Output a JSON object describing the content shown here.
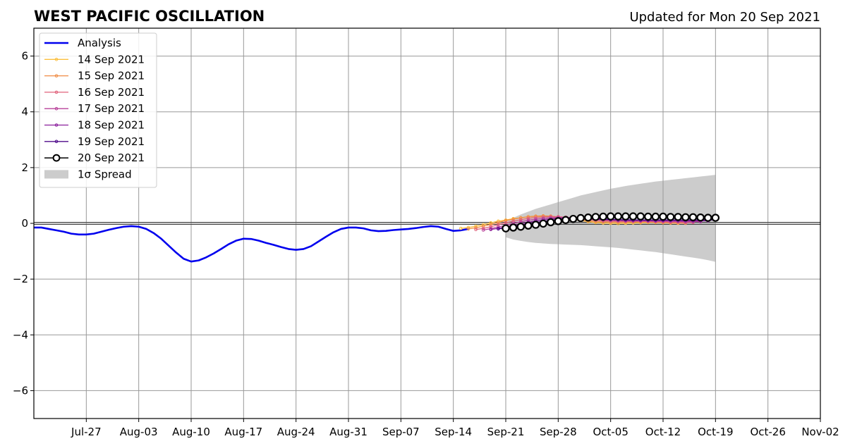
{
  "chart_data": {
    "type": "line",
    "title": "WEST PACIFIC OSCILLATION",
    "subtitle": "Updated for Mon 20 Sep 2021",
    "xlabel": "",
    "ylabel": "",
    "x_range": [
      "2021-07-20",
      "2021-11-02"
    ],
    "ylim": [
      -7,
      7
    ],
    "x_ticks": [
      "Jul-27",
      "Aug-03",
      "Aug-10",
      "Aug-17",
      "Aug-24",
      "Aug-31",
      "Sep-07",
      "Sep-14",
      "Sep-21",
      "Sep-28",
      "Oct-05",
      "Oct-12",
      "Oct-19",
      "Oct-26",
      "Nov-02"
    ],
    "y_ticks": [
      "6",
      "4",
      "2",
      "0",
      "−2",
      "−4",
      "−6"
    ],
    "y_tick_values": [
      6,
      4,
      2,
      0,
      -2,
      -4,
      -6
    ],
    "grid": true,
    "zero_line": true,
    "legend_position": "upper left",
    "legend": [
      {
        "label": "Analysis",
        "color": "#0000ee",
        "style": "thick-line"
      },
      {
        "label": "14 Sep 2021",
        "color": "#fbbf3e",
        "style": "line-dot"
      },
      {
        "label": "15 Sep 2021",
        "color": "#f08c45",
        "style": "line-dot"
      },
      {
        "label": "16 Sep 2021",
        "color": "#e0607a",
        "style": "line-dot"
      },
      {
        "label": "17 Sep 2021",
        "color": "#b8409a",
        "style": "line-dot"
      },
      {
        "label": "18 Sep 2021",
        "color": "#8a1e9c",
        "style": "line-dot"
      },
      {
        "label": "19 Sep 2021",
        "color": "#4e0a8a",
        "style": "line-dot"
      },
      {
        "label": "20 Sep 2021",
        "color": "#000000",
        "style": "line-circle"
      },
      {
        "label": "1σ Spread",
        "color": "#cccccc",
        "style": "patch"
      }
    ],
    "analysis": {
      "x": [
        "2021-07-20",
        "2021-07-21",
        "2021-07-22",
        "2021-07-23",
        "2021-07-24",
        "2021-07-25",
        "2021-07-26",
        "2021-07-27",
        "2021-07-28",
        "2021-07-29",
        "2021-07-30",
        "2021-07-31",
        "2021-08-01",
        "2021-08-02",
        "2021-08-03",
        "2021-08-04",
        "2021-08-05",
        "2021-08-06",
        "2021-08-07",
        "2021-08-08",
        "2021-08-09",
        "2021-08-10",
        "2021-08-11",
        "2021-08-12",
        "2021-08-13",
        "2021-08-14",
        "2021-08-15",
        "2021-08-16",
        "2021-08-17",
        "2021-08-18",
        "2021-08-19",
        "2021-08-20",
        "2021-08-21",
        "2021-08-22",
        "2021-08-23",
        "2021-08-24",
        "2021-08-25",
        "2021-08-26",
        "2021-08-27",
        "2021-08-28",
        "2021-08-29",
        "2021-08-30",
        "2021-08-31",
        "2021-09-01",
        "2021-09-02",
        "2021-09-03",
        "2021-09-04",
        "2021-09-05",
        "2021-09-06",
        "2021-09-07",
        "2021-09-08",
        "2021-09-09",
        "2021-09-10",
        "2021-09-11",
        "2021-09-12",
        "2021-09-13",
        "2021-09-14",
        "2021-09-15",
        "2021-09-16"
      ],
      "y": [
        -0.15,
        -0.15,
        -0.2,
        -0.25,
        -0.3,
        -0.37,
        -0.4,
        -0.4,
        -0.37,
        -0.3,
        -0.23,
        -0.17,
        -0.12,
        -0.1,
        -0.12,
        -0.2,
        -0.35,
        -0.55,
        -0.8,
        -1.05,
        -1.27,
        -1.37,
        -1.33,
        -1.22,
        -1.08,
        -0.92,
        -0.75,
        -0.62,
        -0.55,
        -0.56,
        -0.62,
        -0.7,
        -0.77,
        -0.85,
        -0.92,
        -0.95,
        -0.92,
        -0.82,
        -0.65,
        -0.48,
        -0.32,
        -0.2,
        -0.15,
        -0.15,
        -0.18,
        -0.25,
        -0.28,
        -0.27,
        -0.24,
        -0.22,
        -0.2,
        -0.17,
        -0.13,
        -0.1,
        -0.12,
        -0.2,
        -0.27,
        -0.25,
        -0.2
      ]
    },
    "forecasts": [
      {
        "name": "14 Sep 2021",
        "start": "2021-09-15",
        "y": [
          -0.18,
          -0.15,
          -0.1,
          -0.05,
          0.02,
          0.08,
          0.12,
          0.17,
          0.2,
          0.23,
          0.25,
          0.26,
          0.25,
          0.22,
          0.18,
          0.14,
          0.1,
          0.06,
          0.03,
          0.01,
          0.0,
          -0.01,
          0.0,
          0.01,
          0.02,
          0.03,
          0.03,
          0.02,
          0.01,
          0.0
        ]
      },
      {
        "name": "15 Sep 2021",
        "start": "2021-09-16",
        "y": [
          -0.2,
          -0.16,
          -0.1,
          -0.04,
          0.03,
          0.1,
          0.15,
          0.2,
          0.24,
          0.26,
          0.27,
          0.26,
          0.23,
          0.2,
          0.16,
          0.12,
          0.09,
          0.06,
          0.05,
          0.04,
          0.04,
          0.04,
          0.05,
          0.05,
          0.05,
          0.04,
          0.03,
          0.02,
          0.01,
          0.0
        ]
      },
      {
        "name": "16 Sep 2021",
        "start": "2021-09-17",
        "y": [
          -0.22,
          -0.18,
          -0.12,
          -0.05,
          0.02,
          0.08,
          0.13,
          0.18,
          0.21,
          0.23,
          0.24,
          0.24,
          0.22,
          0.19,
          0.16,
          0.13,
          0.11,
          0.09,
          0.08,
          0.07,
          0.07,
          0.07,
          0.07,
          0.06,
          0.06,
          0.05,
          0.04,
          0.04,
          0.03,
          0.03
        ]
      },
      {
        "name": "17 Sep 2021",
        "start": "2021-09-18",
        "y": [
          -0.24,
          -0.19,
          -0.13,
          -0.07,
          0.0,
          0.06,
          0.11,
          0.15,
          0.18,
          0.2,
          0.21,
          0.21,
          0.2,
          0.18,
          0.16,
          0.14,
          0.12,
          0.11,
          0.1,
          0.09,
          0.09,
          0.09,
          0.09,
          0.08,
          0.08,
          0.07,
          0.07,
          0.06,
          0.06,
          0.06
        ]
      },
      {
        "name": "18 Sep 2021",
        "start": "2021-09-19",
        "y": [
          -0.22,
          -0.18,
          -0.13,
          -0.08,
          -0.02,
          0.04,
          0.09,
          0.13,
          0.16,
          0.18,
          0.19,
          0.19,
          0.18,
          0.17,
          0.15,
          0.14,
          0.13,
          0.12,
          0.11,
          0.11,
          0.11,
          0.1,
          0.1,
          0.1,
          0.1,
          0.09,
          0.09,
          0.09,
          0.09,
          0.09
        ]
      },
      {
        "name": "19 Sep 2021",
        "start": "2021-09-20",
        "y": [
          -0.2,
          -0.16,
          -0.12,
          -0.07,
          -0.02,
          0.03,
          0.07,
          0.11,
          0.14,
          0.16,
          0.17,
          0.17,
          0.17,
          0.16,
          0.15,
          0.14,
          0.13,
          0.13,
          0.12,
          0.12,
          0.12,
          0.12,
          0.12,
          0.12,
          0.12,
          0.12,
          0.12,
          0.12,
          0.12,
          0.12
        ]
      },
      {
        "name": "20 Sep 2021",
        "start": "2021-09-21",
        "y": [
          -0.18,
          -0.15,
          -0.12,
          -0.08,
          -0.05,
          -0.01,
          0.04,
          0.08,
          0.12,
          0.16,
          0.19,
          0.21,
          0.23,
          0.24,
          0.25,
          0.25,
          0.25,
          0.25,
          0.25,
          0.24,
          0.24,
          0.24,
          0.23,
          0.23,
          0.22,
          0.22,
          0.21,
          0.2,
          0.2
        ]
      }
    ],
    "spread": {
      "start": "2021-09-21",
      "end": "2021-10-19",
      "upper": [
        0.05,
        0.2,
        0.32,
        0.42,
        0.52,
        0.6,
        0.68,
        0.76,
        0.84,
        0.92,
        1.0,
        1.06,
        1.12,
        1.18,
        1.24,
        1.29,
        1.34,
        1.38,
        1.42,
        1.46,
        1.5,
        1.53,
        1.56,
        1.59,
        1.62,
        1.65,
        1.68,
        1.71,
        1.74
      ],
      "lower": [
        -0.5,
        -0.58,
        -0.63,
        -0.67,
        -0.7,
        -0.72,
        -0.74,
        -0.75,
        -0.76,
        -0.77,
        -0.78,
        -0.8,
        -0.82,
        -0.84,
        -0.86,
        -0.88,
        -0.91,
        -0.94,
        -0.97,
        -1.0,
        -1.03,
        -1.07,
        -1.11,
        -1.15,
        -1.19,
        -1.23,
        -1.27,
        -1.32,
        -1.38
      ]
    }
  }
}
